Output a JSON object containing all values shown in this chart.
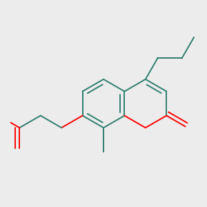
{
  "background_color": "#ececec",
  "bond_color": "#2d7d6e",
  "heteroatom_color": "#ff0000",
  "line_width": 1.4,
  "figsize": [
    3.0,
    3.0
  ],
  "dpi": 100,
  "xlim": [
    -0.15,
    0.85
  ],
  "ylim": [
    -0.55,
    0.55
  ]
}
